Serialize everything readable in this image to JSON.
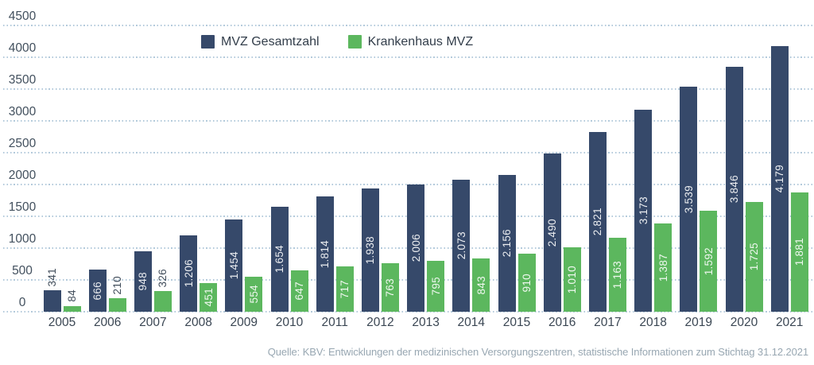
{
  "source_note": "Quelle: KBV: Entwicklungen der medizinischen Versorgungszentren, statistische Informationen zum Stichtag 31.12.2021",
  "colors": {
    "bar_total": "#36496a",
    "bar_hospital": "#5cb75e",
    "gridline": "#b3cadb",
    "axis_text": "#42505e",
    "label_inside": "#ffffff",
    "label_outside": "#414d5b",
    "source_text": "#98a7b2"
  },
  "chart_data": {
    "type": "bar",
    "title": "",
    "xlabel": "",
    "ylabel": "",
    "ylim": [
      0,
      4500
    ],
    "ytick_step": 500,
    "yticks": [
      "0",
      "500",
      "1000",
      "1500",
      "2000",
      "2500",
      "3000",
      "3500",
      "4000",
      "4500"
    ],
    "grid": "horizontal-dotted",
    "legend_position": "top-center",
    "categories": [
      "2005",
      "2006",
      "2007",
      "2008",
      "2009",
      "2010",
      "2011",
      "2012",
      "2013",
      "2014",
      "2015",
      "2016",
      "2017",
      "2018",
      "2019",
      "2020",
      "2021"
    ],
    "series": [
      {
        "name": "MVZ Gesamtzahl",
        "color": "#36496a",
        "values": [
          341,
          666,
          948,
          1206,
          1454,
          1654,
          1814,
          1938,
          2006,
          2073,
          2156,
          2490,
          2821,
          3173,
          3539,
          3846,
          4179
        ],
        "labels": [
          "341",
          "666",
          "948",
          "1.206",
          "1.454",
          "1.654",
          "1.814",
          "1.938",
          "2.006",
          "2.073",
          "2.156",
          "2.490",
          "2.821",
          "3.173",
          "3.539",
          "3.846",
          "4.179"
        ]
      },
      {
        "name": "Krankenhaus MVZ",
        "color": "#5cb75e",
        "values": [
          84,
          210,
          326,
          451,
          554,
          647,
          717,
          763,
          795,
          843,
          910,
          1010,
          1163,
          1387,
          1592,
          1725,
          1881
        ],
        "labels": [
          "84",
          "210",
          "326",
          "451",
          "554",
          "647",
          "717",
          "763",
          "795",
          "843",
          "910",
          "1.010",
          "1.163",
          "1.387",
          "1.592",
          "1.725",
          "1.881"
        ]
      }
    ]
  }
}
